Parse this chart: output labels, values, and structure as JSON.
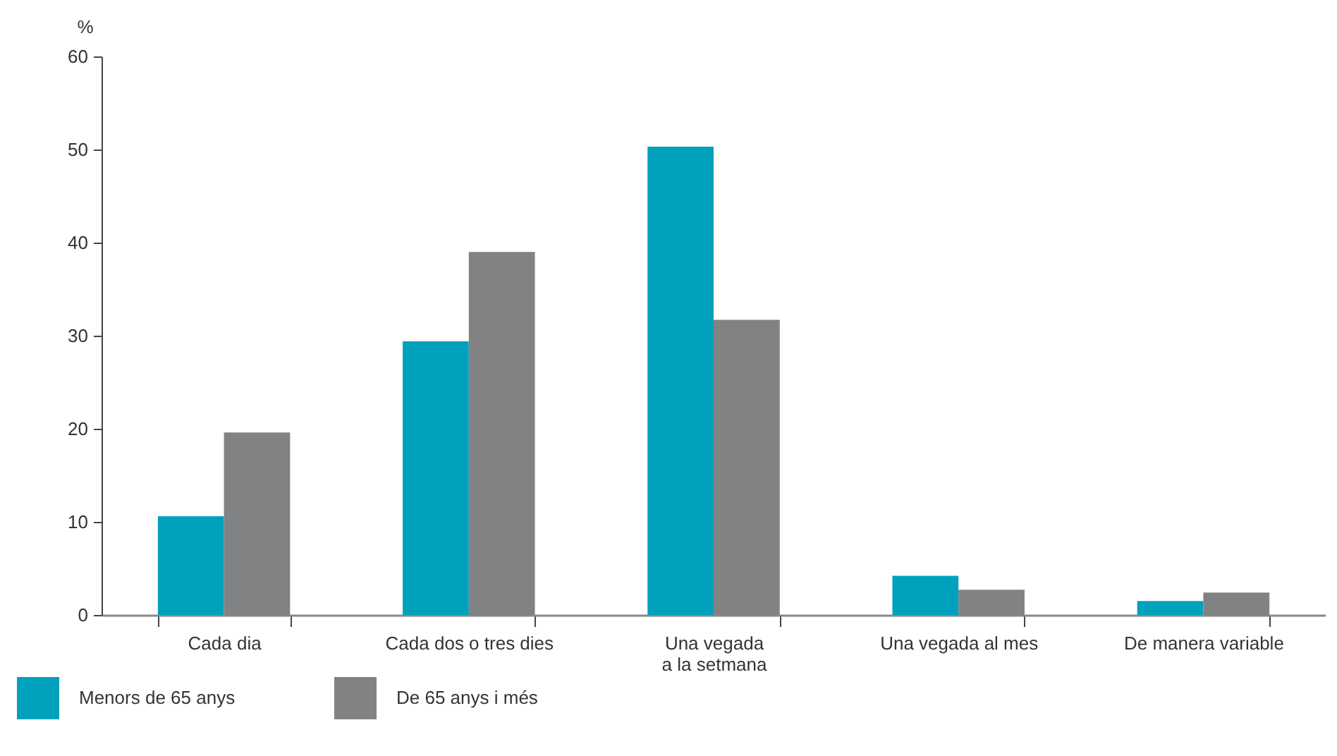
{
  "chart_data": {
    "type": "bar",
    "ylabel": "%",
    "categories": [
      "Cada dia",
      "Cada dos o tres dies",
      "Una vegada\na la setmana",
      "Una vegada al mes",
      "De manera variable"
    ],
    "series": [
      {
        "name": "Menors de 65 anys",
        "color": "#00a1bc",
        "values": [
          10.6,
          29.4,
          50.3,
          4.2,
          1.5
        ]
      },
      {
        "name": "De 65 anys i més",
        "color": "#818284",
        "values": [
          19.6,
          39.0,
          31.7,
          2.7,
          2.4
        ]
      }
    ],
    "ylim": [
      0,
      60
    ],
    "yticks": [
      0,
      10,
      20,
      30,
      40,
      50,
      60
    ],
    "legend": "bottom left"
  }
}
